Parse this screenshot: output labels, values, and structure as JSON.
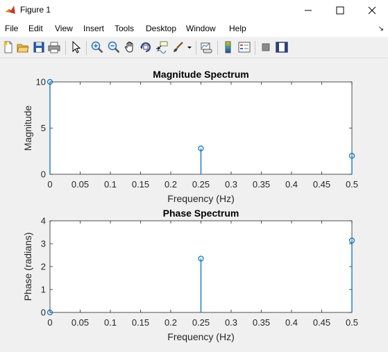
{
  "window": {
    "title": "Figure 1"
  },
  "menu": [
    "File",
    "Edit",
    "View",
    "Insert",
    "Tools",
    "Desktop",
    "Window",
    "Help"
  ],
  "toolbar": [
    "new-figure-icon",
    "open-file-icon",
    "save-icon",
    "print-icon",
    "edit-plot-arrow-icon",
    "zoom-in-icon",
    "zoom-out-icon",
    "pan-hand-icon",
    "rotate-3d-icon",
    "data-cursor-icon",
    "brush-icon",
    "brush-dropdown-icon",
    "link-plot-icon",
    "colorbar-icon",
    "legend-icon",
    "hide-plot-tools-icon",
    "show-plot-tools-icon"
  ],
  "colors": {
    "stem": "#0072bd",
    "axes": "#262626",
    "grid_bg": "#ffffff"
  },
  "chart_data": [
    {
      "type": "stem",
      "title": "Magnitude Spectrum",
      "xlabel": "Frequency (Hz)",
      "ylabel": "Magnitude",
      "x": [
        0,
        0.25,
        0.5
      ],
      "y": [
        10,
        2.8,
        2
      ],
      "xlim": [
        0,
        0.5
      ],
      "ylim": [
        0,
        10
      ],
      "xticks": [
        "0",
        "0.05",
        "0.1",
        "0.15",
        "0.2",
        "0.25",
        "0.3",
        "0.35",
        "0.4",
        "0.45",
        "0.5"
      ],
      "yticks": [
        "0",
        "5",
        "10"
      ],
      "grid": false
    },
    {
      "type": "stem",
      "title": "Phase Spectrum",
      "xlabel": "Frequency (Hz)",
      "ylabel": "Phase (radians)",
      "x": [
        0,
        0.25,
        0.5
      ],
      "y": [
        0,
        2.35,
        3.14
      ],
      "xlim": [
        0,
        0.5
      ],
      "ylim": [
        0,
        4
      ],
      "xticks": [
        "0",
        "0.05",
        "0.1",
        "0.15",
        "0.2",
        "0.25",
        "0.3",
        "0.35",
        "0.4",
        "0.45",
        "0.5"
      ],
      "yticks": [
        "0",
        "1",
        "2",
        "3",
        "4"
      ],
      "grid": false
    }
  ]
}
